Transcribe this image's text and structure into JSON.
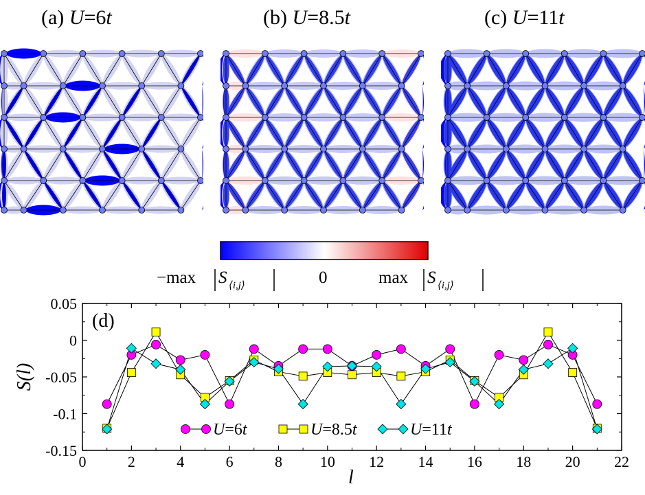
{
  "panels": [
    {
      "label": "(a) ",
      "var": "U",
      "eq": "=6",
      "unit": "t"
    },
    {
      "label": "(b) ",
      "var": "U",
      "eq": "=8.5",
      "unit": "t"
    },
    {
      "label": "(c) ",
      "var": "U",
      "eq": "=11",
      "unit": "t"
    }
  ],
  "colorbar": {
    "low_color": "#0000ff",
    "mid_color": "#ffffff",
    "high_color": "#e00000",
    "left_label": "−max",
    "center_label": "0",
    "right_label": "max",
    "quantity": "S",
    "subscript": "⟨i,j⟩"
  },
  "chart_data": {
    "type": "line",
    "panel_label": "(d)",
    "xlabel": "l",
    "ylabel": "S(l)",
    "xlim": [
      0,
      22
    ],
    "ylim": [
      -0.15,
      0.05
    ],
    "xticks": [
      0,
      2,
      4,
      6,
      8,
      10,
      12,
      14,
      16,
      18,
      20,
      22
    ],
    "yticks": [
      {
        "value": 0.05,
        "label": "0.05"
      },
      {
        "value": 0,
        "label": "0"
      },
      {
        "value": -0.05,
        "label": "-0.05"
      },
      {
        "value": -0.1,
        "label": "-0.1"
      },
      {
        "value": -0.15,
        "label": "-0.15"
      }
    ],
    "x": [
      1,
      2,
      3,
      4,
      5,
      6,
      7,
      8,
      9,
      10,
      11,
      12,
      13,
      14,
      15,
      16,
      17,
      18,
      19,
      20,
      21
    ],
    "series": [
      {
        "name": "U=6t",
        "var": "U",
        "eq": "=6",
        "unit": "t",
        "marker": "circle",
        "color": "#ff00ff",
        "values": [
          -0.087,
          -0.02,
          -0.006,
          -0.027,
          -0.02,
          -0.087,
          -0.012,
          -0.035,
          -0.012,
          -0.012,
          -0.035,
          -0.02,
          -0.012,
          -0.035,
          -0.012,
          -0.087,
          -0.02,
          -0.027,
          -0.006,
          -0.02,
          -0.087
        ]
      },
      {
        "name": "U=8.5t",
        "var": "U",
        "eq": "=8.5",
        "unit": "t",
        "marker": "square",
        "color": "#ffff00",
        "values": [
          -0.12,
          -0.044,
          0.011,
          -0.047,
          -0.078,
          -0.055,
          -0.027,
          -0.043,
          -0.049,
          -0.044,
          -0.047,
          -0.044,
          -0.049,
          -0.043,
          -0.027,
          -0.055,
          -0.078,
          -0.047,
          0.011,
          -0.044,
          -0.12
        ]
      },
      {
        "name": "U=11t",
        "var": "U",
        "eq": "=11",
        "unit": "t",
        "marker": "diamond",
        "color": "#00e5e5",
        "values": [
          -0.121,
          -0.011,
          -0.032,
          -0.04,
          -0.087,
          -0.056,
          -0.03,
          -0.039,
          -0.087,
          -0.036,
          -0.035,
          -0.036,
          -0.087,
          -0.039,
          -0.03,
          -0.056,
          -0.087,
          -0.04,
          -0.032,
          -0.011,
          -0.121
        ]
      }
    ]
  },
  "lattice": {
    "bond_color_strong": "#0000ff",
    "bond_color_weak": "#c8c8f0",
    "bond_color_red": "#ffd8d8",
    "site_color": "#6f7cf5",
    "note_no_text": true
  }
}
